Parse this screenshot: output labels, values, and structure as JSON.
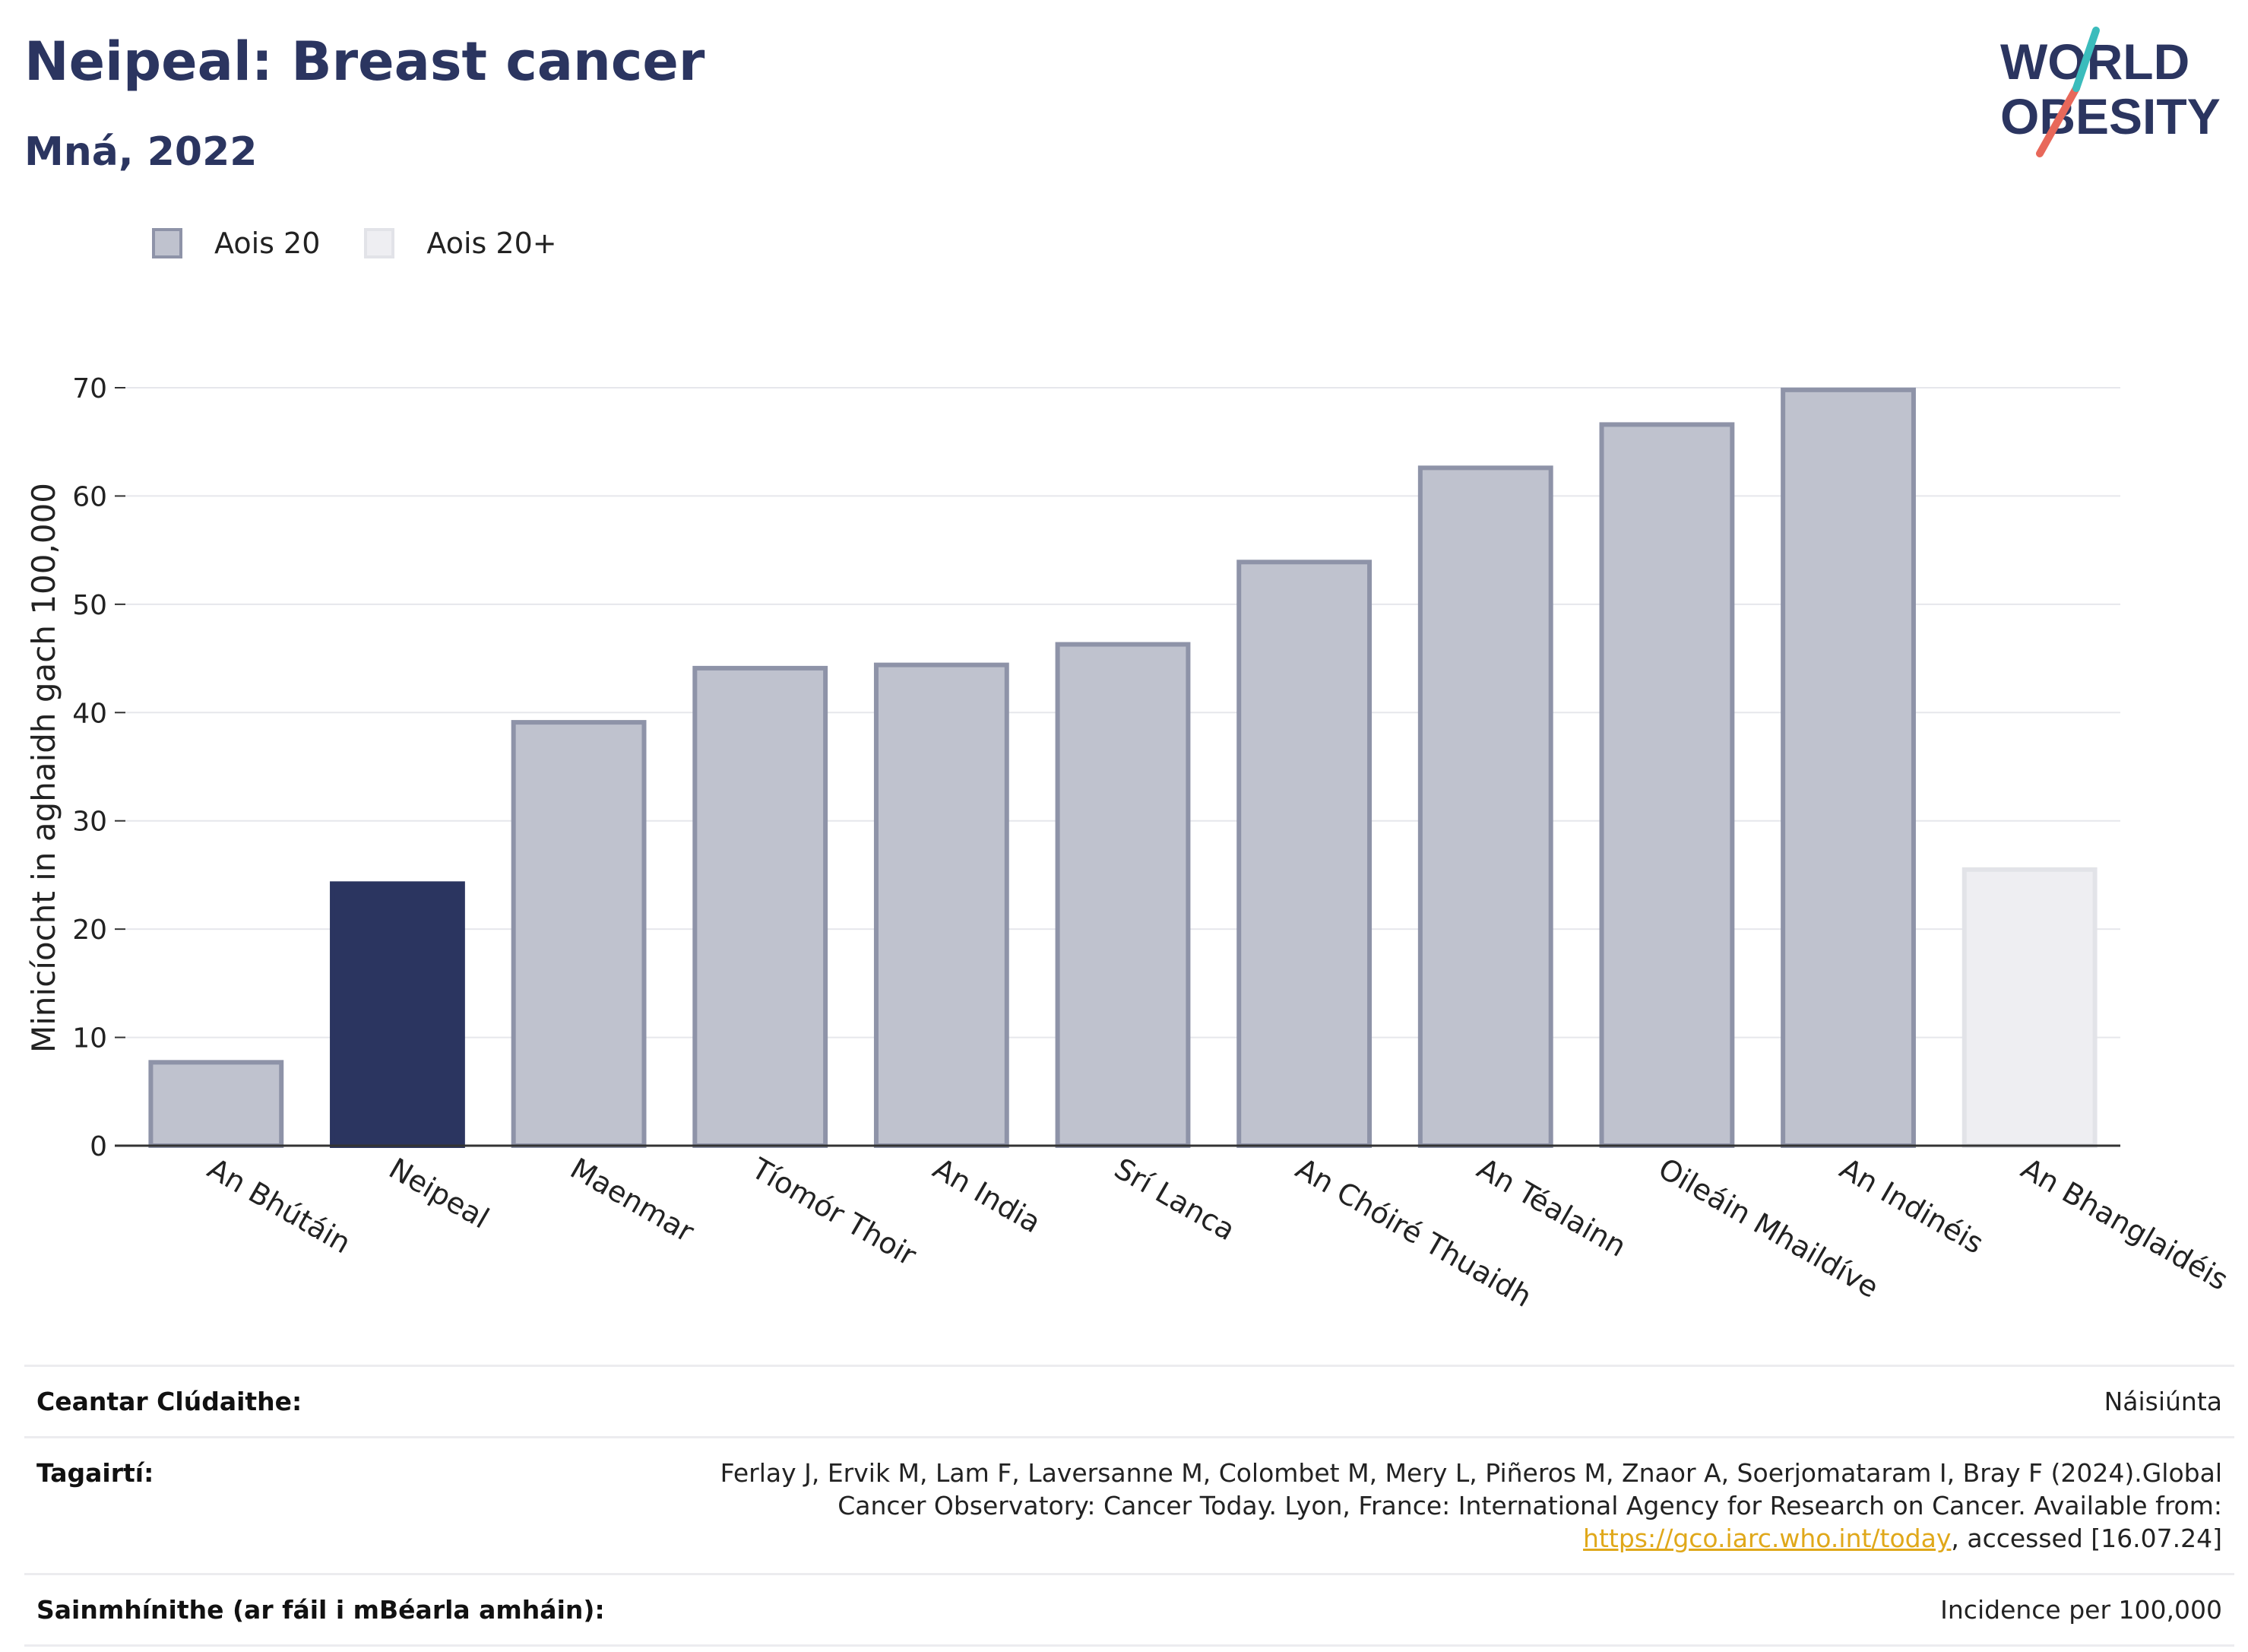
{
  "header": {
    "title": "Neipeal: Breast cancer",
    "subtitle": "Mná, 2022"
  },
  "logo": {
    "line1": "WORLD",
    "line2": "OBESITY"
  },
  "legend": [
    {
      "label": "Aois 20",
      "color": "#bfc2ce",
      "border": "#8e93a8"
    },
    {
      "label": "Aois 20+",
      "color": "#eeeef2",
      "border": "#e2e3e8"
    }
  ],
  "chart_data": {
    "type": "bar",
    "title": "Neipeal: Breast cancer",
    "ylabel": "Minicíocht in aghaidh gach 100,000",
    "xlabel": "",
    "ylim": [
      0,
      70
    ],
    "yticks": [
      0,
      10,
      20,
      30,
      40,
      50,
      60,
      70
    ],
    "grid": true,
    "legend_position": "top-left",
    "categories": [
      "An Bhútáin",
      "Neipeal",
      "Maenmar",
      "Tíomór Thoir",
      "An India",
      "Srí Lanca",
      "An Chóiré Thuaidh",
      "An Téalainn",
      "Oileáin Mhaildíve",
      "An Indinéis",
      "An Bhanglaidéis"
    ],
    "values": [
      7.7,
      24.2,
      39.1,
      44.1,
      44.4,
      46.3,
      53.9,
      62.6,
      66.6,
      69.8,
      25.5
    ],
    "series_group": [
      "Aois 20",
      "highlight",
      "Aois 20",
      "Aois 20",
      "Aois 20",
      "Aois 20",
      "Aois 20",
      "Aois 20",
      "Aois 20",
      "Aois 20",
      "Aois 20+"
    ],
    "colors": {
      "default_fill": "#bfc2ce",
      "default_border": "#8e93a8",
      "highlight_fill": "#2b3560",
      "adult_fill": "#eeeef2",
      "adult_border": "#e2e3e8"
    }
  },
  "footer": {
    "coverage_label": "Ceantar Clúdaithe:",
    "coverage_value": "Náisiúnta",
    "references_label": "Tagairtí:",
    "references_text_1": "Ferlay J, Ervik M, Lam F, Laversanne M, Colombet M, Mery L, Piñeros M, Znaor A, Soerjomataram I, Bray F (2024).Global Cancer Observatory: Cancer Today. Lyon, France: International Agency for Research on Cancer. Available from: ",
    "references_link": "https://gco.iarc.who.int/today",
    "references_text_2": ", accessed [16.07.24]",
    "definitions_label": "Sainmhínithe (ar fáil i mBéarla amháin):",
    "definitions_value": "Incidence per 100,000"
  }
}
